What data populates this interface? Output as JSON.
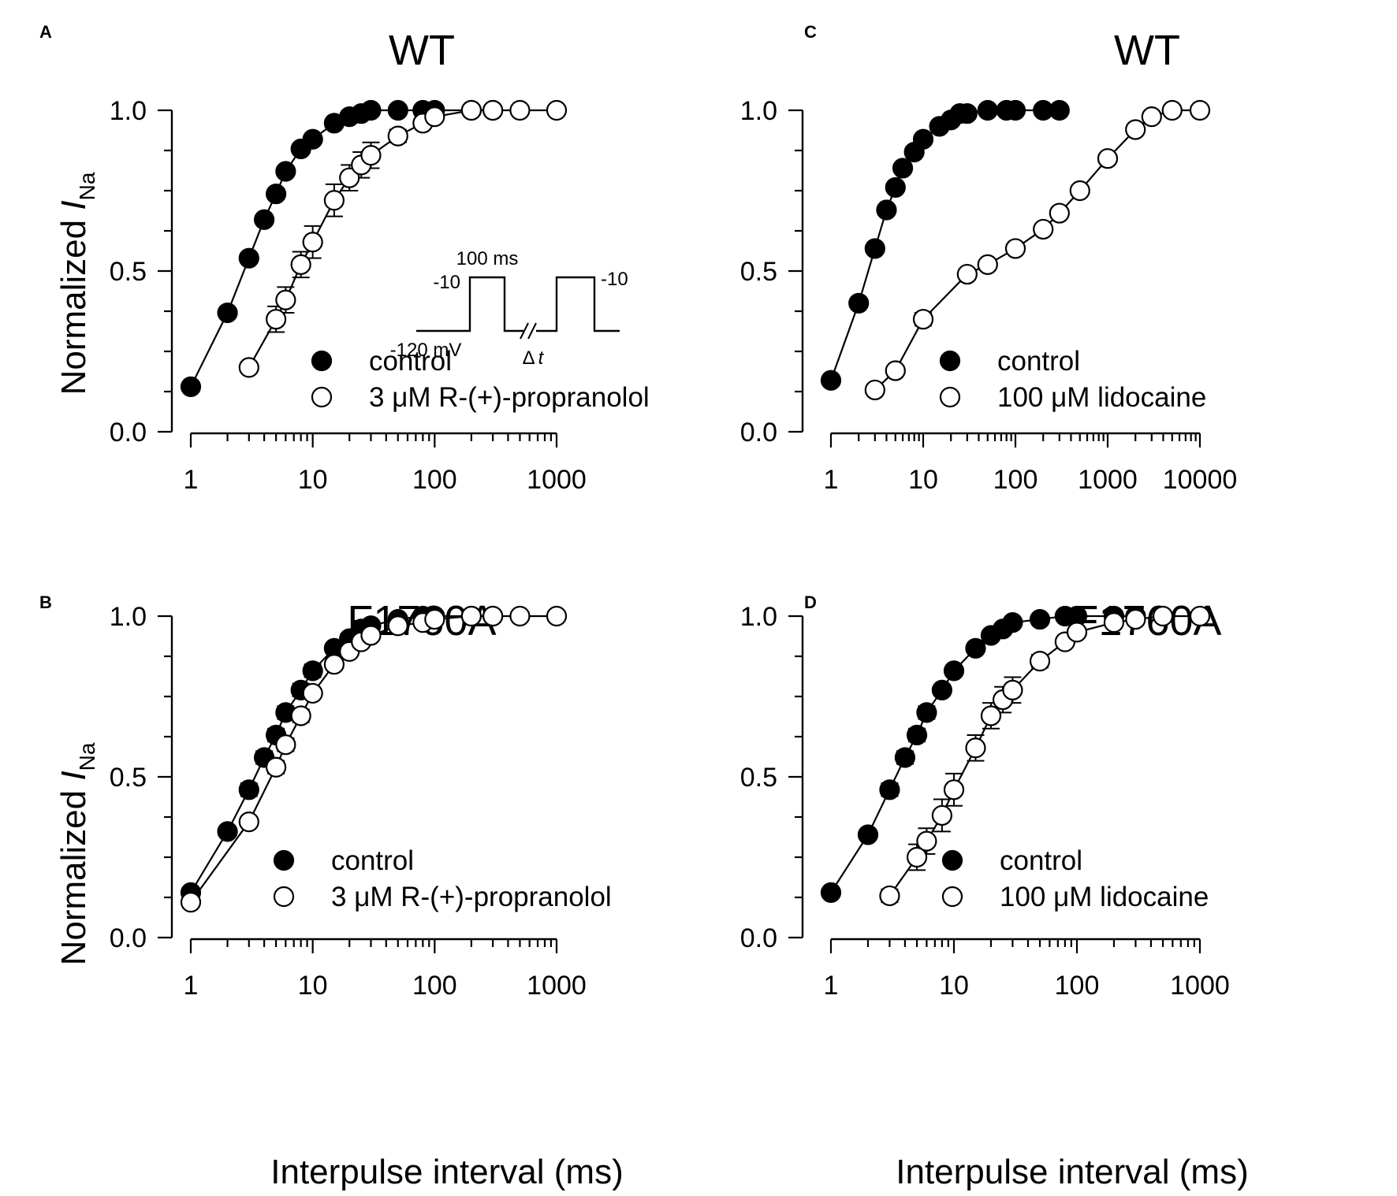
{
  "figure": {
    "ylabel_prefix": "Normalized ",
    "ylabel_italic": "I",
    "ylabel_sub": "Na",
    "xlabel": "Interpulse interval (ms)"
  },
  "inset": {
    "pulse_label": "100 ms",
    "step_left": "-10",
    "step_right": "-10",
    "holding": "-120 mV",
    "delta_symbol": "Δ",
    "delta_var": "t"
  },
  "chart_data": [
    {
      "type": "scatter",
      "panel": "A",
      "title": "WT",
      "xscale": "log",
      "xlim": [
        1,
        1000
      ],
      "ylim": [
        0,
        1
      ],
      "yticks": [
        "0.0",
        "0.5",
        "1.0"
      ],
      "xticks": [
        "1",
        "10",
        "100",
        "1000"
      ],
      "legend_position": "bottom-right",
      "series": [
        {
          "name": "control",
          "marker": "filled-circle",
          "x": [
            1,
            2,
            3,
            4,
            5,
            6,
            8,
            10,
            15,
            20,
            25,
            30,
            50,
            80,
            100,
            200,
            300
          ],
          "y": [
            0.14,
            0.37,
            0.54,
            0.66,
            0.74,
            0.81,
            0.88,
            0.91,
            0.96,
            0.98,
            0.99,
            1.0,
            1.0,
            1.0,
            1.0,
            1.0,
            1.0
          ],
          "err": [
            0,
            0,
            0.01,
            0.01,
            0.01,
            0.01,
            0.01,
            0.01,
            0,
            0,
            0,
            0,
            0,
            0,
            0,
            0,
            0
          ]
        },
        {
          "name": "3 μM R-(+)-propranolol",
          "marker": "open-circle",
          "x": [
            3,
            5,
            6,
            8,
            10,
            15,
            20,
            25,
            30,
            50,
            80,
            100,
            200,
            300,
            500,
            1000
          ],
          "y": [
            0.2,
            0.35,
            0.41,
            0.52,
            0.59,
            0.72,
            0.79,
            0.83,
            0.86,
            0.92,
            0.96,
            0.98,
            1.0,
            1.0,
            1.0,
            1.0
          ],
          "err": [
            0.01,
            0.04,
            0.04,
            0.04,
            0.05,
            0.05,
            0.04,
            0.04,
            0.04,
            0.02,
            0.01,
            0.01,
            0,
            0,
            0,
            0
          ]
        }
      ]
    },
    {
      "type": "scatter",
      "panel": "B",
      "title": "F1760A",
      "xscale": "log",
      "xlim": [
        1,
        1000
      ],
      "ylim": [
        0,
        1
      ],
      "yticks": [
        "0.0",
        "0.5",
        "1.0"
      ],
      "xticks": [
        "1",
        "10",
        "100",
        "1000"
      ],
      "legend_position": "bottom-right",
      "series": [
        {
          "name": "control",
          "marker": "filled-circle",
          "x": [
            1,
            2,
            3,
            4,
            5,
            6,
            8,
            10,
            15,
            20,
            25,
            30,
            50,
            80,
            100,
            200,
            300
          ],
          "y": [
            0.14,
            0.33,
            0.46,
            0.56,
            0.63,
            0.7,
            0.77,
            0.83,
            0.9,
            0.93,
            0.96,
            0.97,
            0.99,
            1.0,
            1.0,
            1.0,
            1.0
          ],
          "err": [
            0,
            0.01,
            0.02,
            0.02,
            0.02,
            0.02,
            0.02,
            0.02,
            0.01,
            0.01,
            0.01,
            0,
            0,
            0,
            0,
            0,
            0
          ]
        },
        {
          "name": "3 μM R-(+)-propranolol",
          "marker": "open-circle",
          "x": [
            1,
            3,
            5,
            6,
            8,
            10,
            15,
            20,
            25,
            30,
            50,
            80,
            100,
            200,
            300,
            500,
            1000
          ],
          "y": [
            0.11,
            0.36,
            0.53,
            0.6,
            0.69,
            0.76,
            0.85,
            0.89,
            0.92,
            0.94,
            0.97,
            0.98,
            0.99,
            1.0,
            1.0,
            1.0,
            1.0
          ],
          "err": [
            0,
            0.01,
            0.02,
            0.02,
            0.02,
            0.01,
            0.01,
            0.01,
            0.01,
            0.01,
            0,
            0,
            0,
            0,
            0,
            0,
            0
          ]
        }
      ]
    },
    {
      "type": "scatter",
      "panel": "C",
      "title": "WT",
      "xscale": "log",
      "xlim": [
        1,
        10000
      ],
      "ylim": [
        0,
        1
      ],
      "yticks": [
        "0.0",
        "0.5",
        "1.0"
      ],
      "xticks": [
        "1",
        "10",
        "100",
        "1000",
        "10000"
      ],
      "legend_position": "bottom-right",
      "series": [
        {
          "name": "control",
          "marker": "filled-circle",
          "x": [
            1,
            2,
            3,
            4,
            5,
            6,
            8,
            10,
            15,
            20,
            25,
            30,
            50,
            80,
            100,
            200,
            300
          ],
          "y": [
            0.16,
            0.4,
            0.57,
            0.69,
            0.76,
            0.82,
            0.87,
            0.91,
            0.95,
            0.97,
            0.99,
            0.99,
            1.0,
            1.0,
            1.0,
            1.0,
            1.0
          ],
          "err": [
            0,
            0,
            0,
            0.01,
            0.01,
            0.01,
            0.01,
            0.01,
            0,
            0,
            0,
            0,
            0,
            0,
            0,
            0,
            0
          ]
        },
        {
          "name": "100 μM lidocaine",
          "marker": "open-circle",
          "x": [
            3,
            5,
            10,
            30,
            50,
            100,
            200,
            300,
            500,
            1000,
            2000,
            3000,
            5000,
            10000
          ],
          "y": [
            0.13,
            0.19,
            0.35,
            0.49,
            0.52,
            0.57,
            0.63,
            0.68,
            0.75,
            0.85,
            0.94,
            0.98,
            1.0,
            1.0
          ],
          "err": [
            0,
            0,
            0.02,
            0,
            0,
            0,
            0,
            0,
            0,
            0,
            0,
            0,
            0,
            0
          ]
        }
      ]
    },
    {
      "type": "scatter",
      "panel": "D",
      "title": "F1760A",
      "xscale": "log",
      "xlim": [
        1,
        1000
      ],
      "ylim": [
        0,
        1
      ],
      "yticks": [
        "0.0",
        "0.5",
        "1.0"
      ],
      "xticks": [
        "1",
        "10",
        "100",
        "1000"
      ],
      "legend_position": "bottom-right",
      "series": [
        {
          "name": "control",
          "marker": "filled-circle",
          "x": [
            1,
            2,
            3,
            4,
            5,
            6,
            8,
            10,
            15,
            20,
            25,
            30,
            50,
            80,
            100,
            200,
            300
          ],
          "y": [
            0.14,
            0.32,
            0.46,
            0.56,
            0.63,
            0.7,
            0.77,
            0.83,
            0.9,
            0.94,
            0.96,
            0.98,
            0.99,
            1.0,
            1.0,
            1.0,
            1.0
          ],
          "err": [
            0,
            0.01,
            0.02,
            0.02,
            0.02,
            0.02,
            0.01,
            0.01,
            0.01,
            0,
            0,
            0,
            0,
            0,
            0,
            0,
            0
          ]
        },
        {
          "name": "100 μM lidocaine",
          "marker": "open-circle",
          "x": [
            3,
            5,
            6,
            8,
            10,
            15,
            20,
            25,
            30,
            50,
            80,
            100,
            200,
            300,
            500,
            1000
          ],
          "y": [
            0.13,
            0.25,
            0.3,
            0.38,
            0.46,
            0.59,
            0.69,
            0.74,
            0.77,
            0.86,
            0.92,
            0.95,
            0.98,
            0.99,
            1.0,
            1.0
          ],
          "err": [
            0.02,
            0.04,
            0.04,
            0.05,
            0.05,
            0.04,
            0.04,
            0.04,
            0.04,
            0.02,
            0.01,
            0.01,
            0,
            0,
            0,
            0
          ]
        }
      ]
    }
  ]
}
